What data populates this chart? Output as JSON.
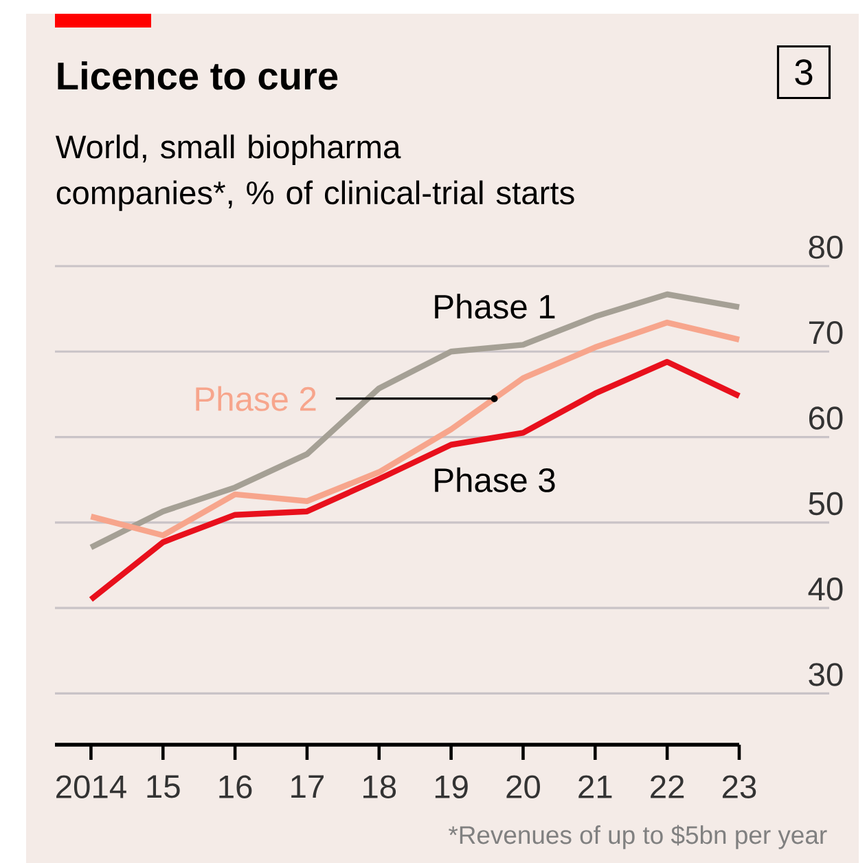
{
  "chart_data": {
    "type": "line",
    "title": "Licence to cure",
    "subtitle": "World, small biopharma companies*, % of clinical-trial starts",
    "x": [
      2014,
      2015,
      2016,
      2017,
      2018,
      2019,
      2020,
      2021,
      2022,
      2023
    ],
    "series": [
      {
        "name": "Phase 1",
        "color": "#a5a095",
        "values": [
          47.1,
          51.3,
          54.1,
          58.0,
          65.7,
          70.0,
          70.8,
          74.1,
          76.7,
          75.2
        ]
      },
      {
        "name": "Phase 2",
        "color": "#f7a58c",
        "values": [
          50.7,
          48.5,
          53.3,
          52.5,
          55.9,
          60.9,
          66.9,
          70.5,
          73.4,
          71.4
        ]
      },
      {
        "name": "Phase 3",
        "color": "#e8101c",
        "values": [
          41.0,
          47.7,
          50.9,
          51.3,
          55.1,
          59.1,
          60.5,
          65.1,
          68.8,
          64.8
        ]
      }
    ],
    "xlim": [
      2013.5,
      2024.25
    ],
    "ylim": [
      24,
      80
    ],
    "xticks": [
      2014,
      {
        "value": 2015,
        "label": "15"
      },
      {
        "value": 2016,
        "label": "16"
      },
      {
        "value": 2017,
        "label": "17"
      },
      {
        "value": 2018,
        "label": "18"
      },
      {
        "value": 2019,
        "label": "19"
      },
      {
        "value": 2020,
        "label": "20"
      },
      {
        "value": 2021,
        "label": "21"
      },
      {
        "value": 2022,
        "label": "22"
      },
      {
        "value": 2023,
        "label": "23"
      }
    ],
    "yticks": [
      30,
      40,
      50,
      60,
      70,
      80
    ],
    "grid": "y",
    "marker": "none",
    "line_style": "solid",
    "annotations": [
      "3",
      "*Revenues of up to $5bn per year"
    ]
  }
}
